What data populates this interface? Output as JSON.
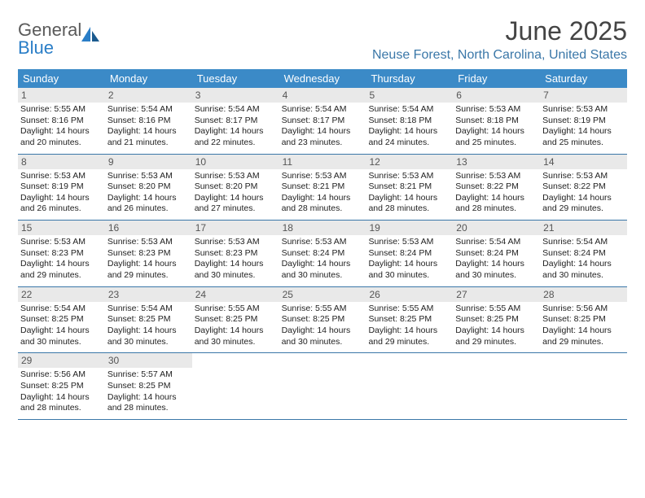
{
  "logo": {
    "word1": "General",
    "word2": "Blue"
  },
  "title": "June 2025",
  "location": "Neuse Forest, North Carolina, United States",
  "colors": {
    "header_bg": "#3b8ac7",
    "header_text": "#ffffff",
    "accent": "#3a77a8",
    "daynum_bg": "#e9e9e9",
    "body_text": "#222222",
    "logo_gray": "#5a5a5a",
    "logo_blue": "#2a7ec7"
  },
  "day_headers": [
    "Sunday",
    "Monday",
    "Tuesday",
    "Wednesday",
    "Thursday",
    "Friday",
    "Saturday"
  ],
  "weeks": [
    [
      {
        "n": "1",
        "sr": "5:55 AM",
        "ss": "8:16 PM",
        "dl": "14 hours and 20 minutes."
      },
      {
        "n": "2",
        "sr": "5:54 AM",
        "ss": "8:16 PM",
        "dl": "14 hours and 21 minutes."
      },
      {
        "n": "3",
        "sr": "5:54 AM",
        "ss": "8:17 PM",
        "dl": "14 hours and 22 minutes."
      },
      {
        "n": "4",
        "sr": "5:54 AM",
        "ss": "8:17 PM",
        "dl": "14 hours and 23 minutes."
      },
      {
        "n": "5",
        "sr": "5:54 AM",
        "ss": "8:18 PM",
        "dl": "14 hours and 24 minutes."
      },
      {
        "n": "6",
        "sr": "5:53 AM",
        "ss": "8:18 PM",
        "dl": "14 hours and 25 minutes."
      },
      {
        "n": "7",
        "sr": "5:53 AM",
        "ss": "8:19 PM",
        "dl": "14 hours and 25 minutes."
      }
    ],
    [
      {
        "n": "8",
        "sr": "5:53 AM",
        "ss": "8:19 PM",
        "dl": "14 hours and 26 minutes."
      },
      {
        "n": "9",
        "sr": "5:53 AM",
        "ss": "8:20 PM",
        "dl": "14 hours and 26 minutes."
      },
      {
        "n": "10",
        "sr": "5:53 AM",
        "ss": "8:20 PM",
        "dl": "14 hours and 27 minutes."
      },
      {
        "n": "11",
        "sr": "5:53 AM",
        "ss": "8:21 PM",
        "dl": "14 hours and 28 minutes."
      },
      {
        "n": "12",
        "sr": "5:53 AM",
        "ss": "8:21 PM",
        "dl": "14 hours and 28 minutes."
      },
      {
        "n": "13",
        "sr": "5:53 AM",
        "ss": "8:22 PM",
        "dl": "14 hours and 28 minutes."
      },
      {
        "n": "14",
        "sr": "5:53 AM",
        "ss": "8:22 PM",
        "dl": "14 hours and 29 minutes."
      }
    ],
    [
      {
        "n": "15",
        "sr": "5:53 AM",
        "ss": "8:23 PM",
        "dl": "14 hours and 29 minutes."
      },
      {
        "n": "16",
        "sr": "5:53 AM",
        "ss": "8:23 PM",
        "dl": "14 hours and 29 minutes."
      },
      {
        "n": "17",
        "sr": "5:53 AM",
        "ss": "8:23 PM",
        "dl": "14 hours and 30 minutes."
      },
      {
        "n": "18",
        "sr": "5:53 AM",
        "ss": "8:24 PM",
        "dl": "14 hours and 30 minutes."
      },
      {
        "n": "19",
        "sr": "5:53 AM",
        "ss": "8:24 PM",
        "dl": "14 hours and 30 minutes."
      },
      {
        "n": "20",
        "sr": "5:54 AM",
        "ss": "8:24 PM",
        "dl": "14 hours and 30 minutes."
      },
      {
        "n": "21",
        "sr": "5:54 AM",
        "ss": "8:24 PM",
        "dl": "14 hours and 30 minutes."
      }
    ],
    [
      {
        "n": "22",
        "sr": "5:54 AM",
        "ss": "8:25 PM",
        "dl": "14 hours and 30 minutes."
      },
      {
        "n": "23",
        "sr": "5:54 AM",
        "ss": "8:25 PM",
        "dl": "14 hours and 30 minutes."
      },
      {
        "n": "24",
        "sr": "5:55 AM",
        "ss": "8:25 PM",
        "dl": "14 hours and 30 minutes."
      },
      {
        "n": "25",
        "sr": "5:55 AM",
        "ss": "8:25 PM",
        "dl": "14 hours and 30 minutes."
      },
      {
        "n": "26",
        "sr": "5:55 AM",
        "ss": "8:25 PM",
        "dl": "14 hours and 29 minutes."
      },
      {
        "n": "27",
        "sr": "5:55 AM",
        "ss": "8:25 PM",
        "dl": "14 hours and 29 minutes."
      },
      {
        "n": "28",
        "sr": "5:56 AM",
        "ss": "8:25 PM",
        "dl": "14 hours and 29 minutes."
      }
    ],
    [
      {
        "n": "29",
        "sr": "5:56 AM",
        "ss": "8:25 PM",
        "dl": "14 hours and 28 minutes."
      },
      {
        "n": "30",
        "sr": "5:57 AM",
        "ss": "8:25 PM",
        "dl": "14 hours and 28 minutes."
      },
      null,
      null,
      null,
      null,
      null
    ]
  ],
  "labels": {
    "sunrise": "Sunrise: ",
    "sunset": "Sunset: ",
    "daylight": "Daylight: "
  }
}
